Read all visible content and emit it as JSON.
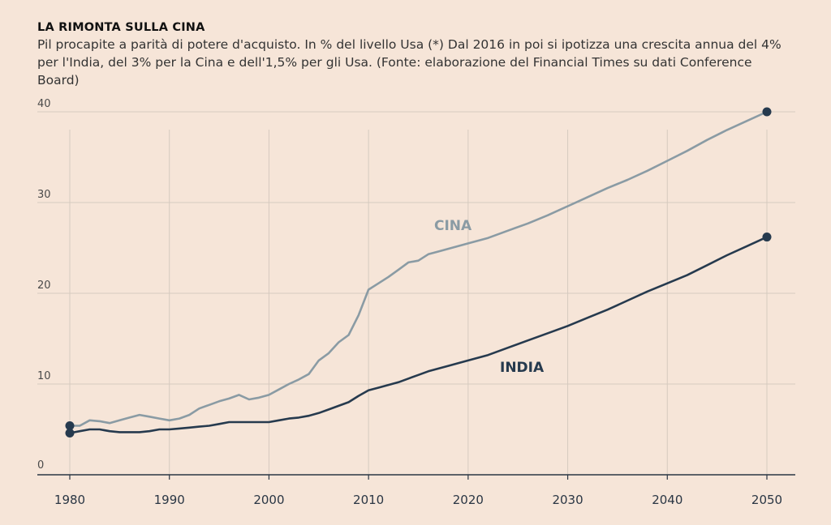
{
  "title": "LA RIMONTA SULLA CINA",
  "subtitle": "Pil procapite a parità di potere d'acquisto. In % del livello Usa (*) Dal 2016 in poi si ipotizza una crescita annua del 4% per l'India, del 3% per la Cina e dell'1,5% per gli Usa. (Fonte: elaborazione del Financial Times su dati Conference Board)",
  "colors": {
    "background": "#f6e5d8",
    "cina": "#8a9ba4",
    "india": "#263a4e",
    "grid": "#d6cabf",
    "axis": "#2a3644"
  },
  "chart_data": {
    "type": "line",
    "xlim": [
      1980,
      2050
    ],
    "ylim": [
      0,
      40
    ],
    "x_ticks": [
      1980,
      1990,
      2000,
      2010,
      2020,
      2030,
      2040,
      2050
    ],
    "y_ticks": [
      0,
      10,
      20,
      30,
      40
    ],
    "grid": "horizontal and vertical",
    "series": [
      {
        "name": "CINA",
        "color": "#8a9ba4",
        "x": [
          1980,
          1981,
          1982,
          1983,
          1984,
          1985,
          1986,
          1987,
          1988,
          1989,
          1990,
          1991,
          1992,
          1993,
          1994,
          1995,
          1996,
          1997,
          1998,
          1999,
          2000,
          2001,
          2002,
          2003,
          2004,
          2005,
          2006,
          2007,
          2008,
          2009,
          2010,
          2011,
          2012,
          2013,
          2014,
          2015,
          2016,
          2017,
          2018,
          2019,
          2020,
          2022,
          2024,
          2026,
          2028,
          2030,
          2032,
          2034,
          2036,
          2038,
          2040,
          2042,
          2044,
          2046,
          2048,
          2050
        ],
        "values": [
          5.4,
          5.4,
          6.0,
          5.9,
          5.7,
          6.0,
          6.3,
          6.6,
          6.4,
          6.2,
          6.0,
          6.2,
          6.6,
          7.3,
          7.7,
          8.1,
          8.4,
          8.8,
          8.3,
          8.5,
          8.8,
          9.4,
          10.0,
          10.5,
          11.1,
          12.6,
          13.4,
          14.6,
          15.4,
          17.6,
          20.4,
          21.1,
          21.8,
          22.6,
          23.4,
          23.6,
          24.3,
          24.6,
          24.9,
          25.2,
          25.5,
          26.1,
          26.9,
          27.7,
          28.6,
          29.6,
          30.6,
          31.6,
          32.5,
          33.5,
          34.6,
          35.7,
          36.9,
          38.0,
          39.0,
          40.0
        ]
      },
      {
        "name": "INDIA",
        "color": "#263a4e",
        "x": [
          1980,
          1981,
          1982,
          1983,
          1984,
          1985,
          1986,
          1987,
          1988,
          1989,
          1990,
          1991,
          1992,
          1993,
          1994,
          1995,
          1996,
          1997,
          1998,
          1999,
          2000,
          2001,
          2002,
          2003,
          2004,
          2005,
          2006,
          2007,
          2008,
          2009,
          2010,
          2011,
          2012,
          2013,
          2014,
          2015,
          2016,
          2018,
          2020,
          2022,
          2024,
          2026,
          2028,
          2030,
          2032,
          2034,
          2036,
          2038,
          2040,
          2042,
          2044,
          2046,
          2048,
          2050
        ],
        "values": [
          4.6,
          4.8,
          5.0,
          5.0,
          4.8,
          4.7,
          4.7,
          4.7,
          4.8,
          5.0,
          5.0,
          5.1,
          5.2,
          5.3,
          5.4,
          5.6,
          5.8,
          5.8,
          5.8,
          5.8,
          5.8,
          6.0,
          6.2,
          6.3,
          6.5,
          6.8,
          7.2,
          7.6,
          8.0,
          8.7,
          9.3,
          9.6,
          9.9,
          10.2,
          10.6,
          11.0,
          11.4,
          12.0,
          12.6,
          13.2,
          14.0,
          14.8,
          15.6,
          16.4,
          17.3,
          18.2,
          19.2,
          20.2,
          21.1,
          22.0,
          23.1,
          24.2,
          25.2,
          26.2
        ]
      }
    ]
  }
}
